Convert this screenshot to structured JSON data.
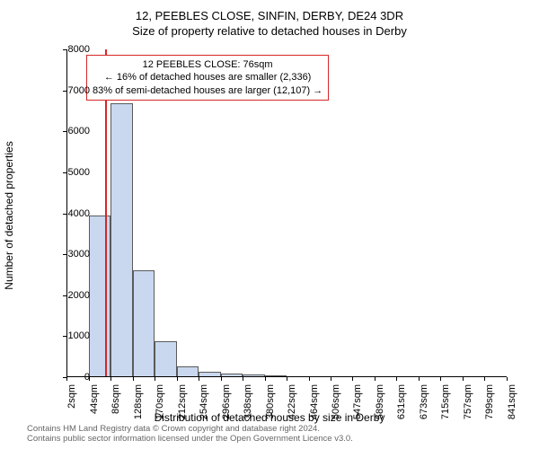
{
  "title_line1": "12, PEEBLES CLOSE, SINFIN, DERBY, DE24 3DR",
  "title_line2": "Size of property relative to detached houses in Derby",
  "chart": {
    "type": "histogram",
    "ylabel": "Number of detached properties",
    "xlabel": "Distribution of detached houses by size in Derby",
    "ylim": [
      0,
      8000
    ],
    "ytick_step": 1000,
    "x_ticks": [
      "2sqm",
      "44sqm",
      "86sqm",
      "128sqm",
      "170sqm",
      "212sqm",
      "254sqm",
      "296sqm",
      "338sqm",
      "380sqm",
      "422sqm",
      "464sqm",
      "506sqm",
      "547sqm",
      "589sqm",
      "631sqm",
      "673sqm",
      "715sqm",
      "757sqm",
      "799sqm",
      "841sqm"
    ],
    "bar_fill": "#c9d8ef",
    "bar_stroke": "#5a5a5a",
    "background_color": "#ffffff",
    "grid_color": "#000000",
    "refline_value": 76,
    "refline_color": "#d62728",
    "bars": [
      {
        "x": 44,
        "count": 3950
      },
      {
        "x": 86,
        "count": 6680
      },
      {
        "x": 128,
        "count": 2600
      },
      {
        "x": 170,
        "count": 880
      },
      {
        "x": 212,
        "count": 260
      },
      {
        "x": 254,
        "count": 140
      },
      {
        "x": 296,
        "count": 80
      },
      {
        "x": 338,
        "count": 60
      },
      {
        "x": 380,
        "count": 40
      }
    ],
    "annotation": {
      "line1": "12 PEEBLES CLOSE: 76sqm",
      "line2": "← 16% of detached houses are smaller (2,336)",
      "line3": "83% of semi-detached houses are larger (12,107) →",
      "border_color": "#d62728"
    }
  },
  "footer_line1": "Contains HM Land Registry data © Crown copyright and database right 2024.",
  "footer_line2": "Contains public sector information licensed under the Open Government Licence v3.0."
}
